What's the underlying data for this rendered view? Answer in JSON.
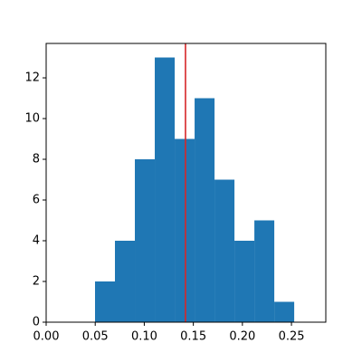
{
  "chart_data": {
    "type": "histogram",
    "bins": [
      0.0498,
      0.0701,
      0.0904,
      0.1107,
      0.131,
      0.1513,
      0.1716,
      0.1919,
      0.2122,
      0.2325,
      0.2528
    ],
    "values": [
      2,
      4,
      8,
      13,
      9,
      11,
      7,
      4,
      5,
      1
    ],
    "color": "#1f77b4",
    "vline": {
      "value": 0.142,
      "color": "#d62728"
    },
    "xlim": [
      0,
      0.285
    ],
    "ylim": [
      0,
      13.69
    ],
    "xticks": [
      {
        "value": 0,
        "label": "0.00"
      },
      {
        "value": 0.05,
        "label": "0.05"
      },
      {
        "value": 0.1,
        "label": "0.10"
      },
      {
        "value": 0.15,
        "label": "0.15"
      },
      {
        "value": 0.2,
        "label": "0.20"
      },
      {
        "value": 0.25,
        "label": "0.25"
      }
    ],
    "yticks": [
      0,
      2,
      4,
      6,
      8,
      10,
      12
    ]
  }
}
